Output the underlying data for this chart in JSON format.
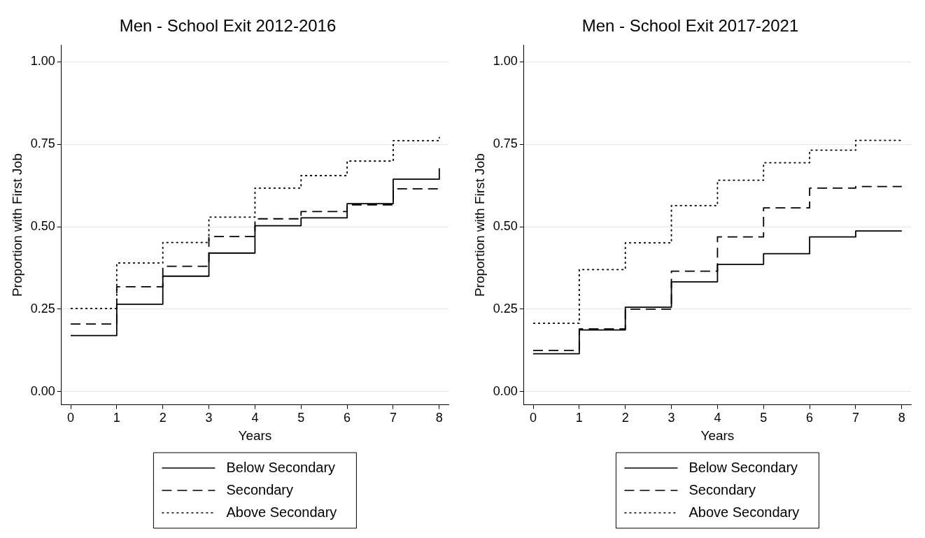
{
  "chart_data": [
    {
      "type": "step",
      "title": "Men - School Exit 2012-2016",
      "xlabel": "Years",
      "ylabel": "Proportion with First Job",
      "x": [
        0,
        1,
        2,
        3,
        4,
        5,
        6,
        7,
        8
      ],
      "xlim": [
        -0.2,
        8.2
      ],
      "xticks": [
        0,
        1,
        2,
        3,
        4,
        5,
        6,
        7,
        8
      ],
      "ylim": [
        -0.04,
        1.05
      ],
      "yticks": [
        {
          "value": 0,
          "label": "0.00"
        },
        {
          "value": 0.25,
          "label": "0.25"
        },
        {
          "value": 0.5,
          "label": "0.50"
        },
        {
          "value": 0.75,
          "label": "0.75"
        },
        {
          "value": 1,
          "label": "1.00"
        }
      ],
      "grid": "y",
      "legend": "bottom",
      "marker": "none",
      "series": [
        {
          "name": "Below Secondary",
          "color": "#000000",
          "line_style": "solid",
          "values": [
            0.17,
            0.265,
            0.35,
            0.42,
            0.503,
            0.527,
            0.57,
            0.644,
            0.677
          ]
        },
        {
          "name": "Secondary",
          "color": "#000000",
          "line_style": "dashed",
          "values": [
            0.205,
            0.318,
            0.38,
            0.47,
            0.524,
            0.546,
            0.566,
            0.615,
            0.615
          ]
        },
        {
          "name": "Above Secondary",
          "color": "#000000",
          "line_style": "dotted",
          "values": [
            0.252,
            0.39,
            0.452,
            0.529,
            0.617,
            0.655,
            0.699,
            0.761,
            0.772
          ]
        }
      ]
    },
    {
      "type": "step",
      "title": "Men - School Exit 2017-2021",
      "xlabel": "Years",
      "ylabel": "Proportion with First Job",
      "x": [
        0,
        1,
        2,
        3,
        4,
        5,
        6,
        7,
        8
      ],
      "xlim": [
        -0.2,
        8.2
      ],
      "xticks": [
        0,
        1,
        2,
        3,
        4,
        5,
        6,
        7,
        8
      ],
      "ylim": [
        -0.04,
        1.05
      ],
      "yticks": [
        {
          "value": 0,
          "label": "0.00"
        },
        {
          "value": 0.25,
          "label": "0.25"
        },
        {
          "value": 0.5,
          "label": "0.50"
        },
        {
          "value": 0.75,
          "label": "0.75"
        },
        {
          "value": 1,
          "label": "1.00"
        }
      ],
      "grid": "y",
      "legend": "bottom",
      "marker": "none",
      "series": [
        {
          "name": "Below Secondary",
          "color": "#000000",
          "line_style": "solid",
          "values": [
            0.115,
            0.187,
            0.256,
            0.333,
            0.386,
            0.418,
            0.469,
            0.487,
            0.487
          ]
        },
        {
          "name": "Secondary",
          "color": "#000000",
          "line_style": "dashed",
          "values": [
            0.125,
            0.19,
            0.25,
            0.365,
            0.469,
            0.557,
            0.617,
            0.622,
            0.622
          ]
        },
        {
          "name": "Above Secondary",
          "color": "#000000",
          "line_style": "dotted",
          "values": [
            0.207,
            0.37,
            0.451,
            0.564,
            0.641,
            0.694,
            0.732,
            0.762,
            0.762
          ]
        }
      ]
    }
  ]
}
